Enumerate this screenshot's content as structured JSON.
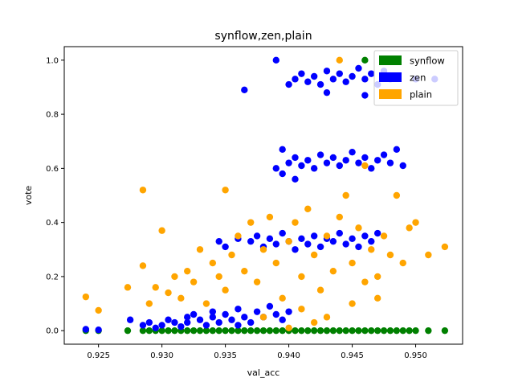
{
  "chart_data": {
    "type": "scatter",
    "title": "synflow,zen,plain",
    "xlabel": "val_acc",
    "ylabel": "vote",
    "xlim": [
      0.9223,
      0.9537
    ],
    "ylim": [
      -0.05,
      1.05
    ],
    "x_ticks": [
      {
        "value": 0.925,
        "label": "0.925"
      },
      {
        "value": 0.93,
        "label": "0.930"
      },
      {
        "value": 0.935,
        "label": "0.935"
      },
      {
        "value": 0.94,
        "label": "0.940"
      },
      {
        "value": 0.945,
        "label": "0.945"
      },
      {
        "value": 0.95,
        "label": "0.950"
      }
    ],
    "y_ticks": [
      {
        "value": 0.0,
        "label": "0.0"
      },
      {
        "value": 0.2,
        "label": "0.2"
      },
      {
        "value": 0.4,
        "label": "0.4"
      },
      {
        "value": 0.6,
        "label": "0.6"
      },
      {
        "value": 0.8,
        "label": "0.8"
      },
      {
        "value": 1.0,
        "label": "1.0"
      }
    ],
    "grid": false,
    "legend_position": "top-right",
    "series": [
      {
        "name": "synflow",
        "color": "#008000",
        "points": [
          [
            0.924,
            0
          ],
          [
            0.925,
            0
          ],
          [
            0.9273,
            0
          ],
          [
            0.9285,
            0
          ],
          [
            0.929,
            0
          ],
          [
            0.9295,
            0
          ],
          [
            0.93,
            0
          ],
          [
            0.9305,
            0
          ],
          [
            0.931,
            0
          ],
          [
            0.9315,
            0
          ],
          [
            0.932,
            0
          ],
          [
            0.9325,
            0
          ],
          [
            0.933,
            0
          ],
          [
            0.9335,
            0
          ],
          [
            0.934,
            0
          ],
          [
            0.9345,
            0
          ],
          [
            0.935,
            0
          ],
          [
            0.9355,
            0
          ],
          [
            0.936,
            0
          ],
          [
            0.9365,
            0
          ],
          [
            0.937,
            0
          ],
          [
            0.9375,
            0
          ],
          [
            0.938,
            0
          ],
          [
            0.9385,
            0
          ],
          [
            0.939,
            0
          ],
          [
            0.9395,
            0
          ],
          [
            0.94,
            0
          ],
          [
            0.9405,
            0
          ],
          [
            0.941,
            0
          ],
          [
            0.9415,
            0
          ],
          [
            0.942,
            0
          ],
          [
            0.9425,
            0
          ],
          [
            0.943,
            0
          ],
          [
            0.9435,
            0
          ],
          [
            0.944,
            0
          ],
          [
            0.9445,
            0
          ],
          [
            0.945,
            0
          ],
          [
            0.9455,
            0
          ],
          [
            0.946,
            0
          ],
          [
            0.9465,
            0
          ],
          [
            0.947,
            0
          ],
          [
            0.9475,
            0
          ],
          [
            0.948,
            0
          ],
          [
            0.9485,
            0
          ],
          [
            0.949,
            0
          ],
          [
            0.9495,
            0
          ],
          [
            0.95,
            0
          ],
          [
            0.951,
            0
          ],
          [
            0.9523,
            0
          ],
          [
            0.946,
            1.0
          ]
        ]
      },
      {
        "name": "zen",
        "color": "#0000ff",
        "points": [
          [
            0.924,
            0.005
          ],
          [
            0.925,
            0.003
          ],
          [
            0.9275,
            0.04
          ],
          [
            0.9285,
            0.02
          ],
          [
            0.929,
            0.03
          ],
          [
            0.9295,
            0.01
          ],
          [
            0.93,
            0.02
          ],
          [
            0.9305,
            0.04
          ],
          [
            0.931,
            0.03
          ],
          [
            0.9315,
            0.015
          ],
          [
            0.932,
            0.05
          ],
          [
            0.9325,
            0.06
          ],
          [
            0.933,
            0.04
          ],
          [
            0.9335,
            0.02
          ],
          [
            0.934,
            0.05
          ],
          [
            0.9345,
            0.03
          ],
          [
            0.935,
            0.06
          ],
          [
            0.9355,
            0.04
          ],
          [
            0.936,
            0.08
          ],
          [
            0.9365,
            0.05
          ],
          [
            0.937,
            0.03
          ],
          [
            0.9375,
            0.07
          ],
          [
            0.938,
            0.05
          ],
          [
            0.9385,
            0.09
          ],
          [
            0.939,
            0.06
          ],
          [
            0.9395,
            0.04
          ],
          [
            0.94,
            0.07
          ],
          [
            0.932,
            0.03
          ],
          [
            0.934,
            0.07
          ],
          [
            0.936,
            0.02
          ],
          [
            0.9345,
            0.33
          ],
          [
            0.935,
            0.31
          ],
          [
            0.936,
            0.34
          ],
          [
            0.937,
            0.33
          ],
          [
            0.9375,
            0.35
          ],
          [
            0.938,
            0.31
          ],
          [
            0.9385,
            0.34
          ],
          [
            0.939,
            0.32
          ],
          [
            0.9395,
            0.36
          ],
          [
            0.94,
            0.33
          ],
          [
            0.9405,
            0.3
          ],
          [
            0.941,
            0.34
          ],
          [
            0.9415,
            0.32
          ],
          [
            0.942,
            0.35
          ],
          [
            0.9425,
            0.31
          ],
          [
            0.943,
            0.34
          ],
          [
            0.9435,
            0.33
          ],
          [
            0.944,
            0.36
          ],
          [
            0.9445,
            0.32
          ],
          [
            0.945,
            0.34
          ],
          [
            0.9455,
            0.31
          ],
          [
            0.946,
            0.35
          ],
          [
            0.9465,
            0.33
          ],
          [
            0.947,
            0.36
          ],
          [
            0.939,
            0.6
          ],
          [
            0.9395,
            0.67
          ],
          [
            0.94,
            0.62
          ],
          [
            0.9405,
            0.64
          ],
          [
            0.941,
            0.61
          ],
          [
            0.9415,
            0.63
          ],
          [
            0.942,
            0.6
          ],
          [
            0.9425,
            0.65
          ],
          [
            0.943,
            0.62
          ],
          [
            0.9435,
            0.64
          ],
          [
            0.944,
            0.61
          ],
          [
            0.9445,
            0.63
          ],
          [
            0.945,
            0.66
          ],
          [
            0.9455,
            0.62
          ],
          [
            0.946,
            0.64
          ],
          [
            0.9465,
            0.6
          ],
          [
            0.947,
            0.63
          ],
          [
            0.9475,
            0.65
          ],
          [
            0.948,
            0.62
          ],
          [
            0.9485,
            0.67
          ],
          [
            0.949,
            0.61
          ],
          [
            0.9395,
            0.58
          ],
          [
            0.9405,
            0.56
          ],
          [
            0.939,
            1.0
          ],
          [
            0.9365,
            0.89
          ],
          [
            0.94,
            0.91
          ],
          [
            0.9405,
            0.93
          ],
          [
            0.941,
            0.95
          ],
          [
            0.9415,
            0.92
          ],
          [
            0.942,
            0.94
          ],
          [
            0.9425,
            0.91
          ],
          [
            0.943,
            0.96
          ],
          [
            0.9435,
            0.93
          ],
          [
            0.944,
            0.95
          ],
          [
            0.9445,
            0.92
          ],
          [
            0.945,
            0.94
          ],
          [
            0.9455,
            0.97
          ],
          [
            0.946,
            0.93
          ],
          [
            0.9465,
            0.95
          ],
          [
            0.947,
            0.91
          ],
          [
            0.9475,
            0.96
          ],
          [
            0.948,
            0.93
          ],
          [
            0.9485,
            0.94
          ],
          [
            0.95,
            0.93
          ],
          [
            0.9515,
            0.93
          ],
          [
            0.943,
            0.88
          ],
          [
            0.946,
            0.87
          ]
        ]
      },
      {
        "name": "plain",
        "color": "#ffa500",
        "points": [
          [
            0.924,
            0.125
          ],
          [
            0.925,
            0.075
          ],
          [
            0.9273,
            0.16
          ],
          [
            0.9285,
            0.52
          ],
          [
            0.9285,
            0.24
          ],
          [
            0.929,
            0.1
          ],
          [
            0.9295,
            0.16
          ],
          [
            0.93,
            0.37
          ],
          [
            0.9305,
            0.14
          ],
          [
            0.931,
            0.2
          ],
          [
            0.9315,
            0.12
          ],
          [
            0.932,
            0.22
          ],
          [
            0.9325,
            0.18
          ],
          [
            0.933,
            0.3
          ],
          [
            0.9335,
            0.1
          ],
          [
            0.934,
            0.25
          ],
          [
            0.9345,
            0.2
          ],
          [
            0.935,
            0.52
          ],
          [
            0.935,
            0.15
          ],
          [
            0.9355,
            0.28
          ],
          [
            0.936,
            0.35
          ],
          [
            0.9365,
            0.22
          ],
          [
            0.937,
            0.4
          ],
          [
            0.9375,
            0.18
          ],
          [
            0.938,
            0.3
          ],
          [
            0.9385,
            0.42
          ],
          [
            0.939,
            0.25
          ],
          [
            0.9395,
            0.12
          ],
          [
            0.94,
            0.33
          ],
          [
            0.9405,
            0.4
          ],
          [
            0.941,
            0.2
          ],
          [
            0.9415,
            0.45
          ],
          [
            0.942,
            0.28
          ],
          [
            0.9425,
            0.15
          ],
          [
            0.943,
            0.35
          ],
          [
            0.9435,
            0.22
          ],
          [
            0.944,
            0.42
          ],
          [
            0.9445,
            0.5
          ],
          [
            0.945,
            0.25
          ],
          [
            0.9455,
            0.38
          ],
          [
            0.946,
            0.18
          ],
          [
            0.9465,
            0.3
          ],
          [
            0.947,
            0.2
          ],
          [
            0.9475,
            0.35
          ],
          [
            0.948,
            0.28
          ],
          [
            0.9485,
            0.5
          ],
          [
            0.949,
            0.25
          ],
          [
            0.9495,
            0.38
          ],
          [
            0.95,
            0.4
          ],
          [
            0.951,
            0.28
          ],
          [
            0.9523,
            0.31
          ],
          [
            0.946,
            0.61
          ],
          [
            0.944,
            1.0
          ],
          [
            0.942,
            0.03
          ],
          [
            0.941,
            0.08
          ],
          [
            0.943,
            0.05
          ],
          [
            0.945,
            0.1
          ],
          [
            0.947,
            0.12
          ],
          [
            0.94,
            0.01
          ],
          [
            0.938,
            0.05
          ]
        ]
      }
    ]
  }
}
